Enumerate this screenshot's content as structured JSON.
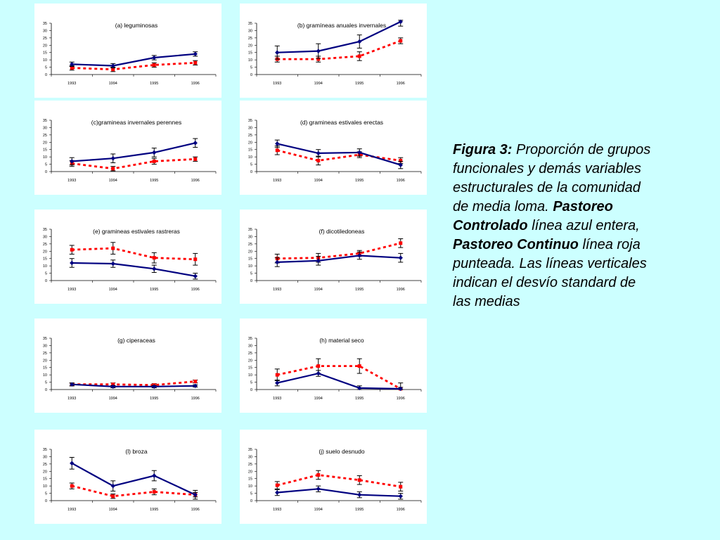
{
  "colors": {
    "controlado": "#000080",
    "continuo": "#ff0000",
    "background": "#ccffff",
    "panel": "#ffffff"
  },
  "caption": {
    "label": "Figura 3:",
    "text1": "Proporción de grupos funcionales y demás variables estructurales de la comunidad de media loma.",
    "controlado_label": "Pastoreo Controlado",
    "text2": "línea azul entera,",
    "continuo_label": "Pastoreo Continuo",
    "text3": "línea roja punteada. Las líneas verticales indican el desvío standard de las medias"
  },
  "chart_data": [
    {
      "type": "line",
      "title": "(a) leguminosas",
      "categories": [
        "1993",
        "1994",
        "1995",
        "1996"
      ],
      "ylim": [
        0,
        35
      ],
      "yticks": [
        0,
        5,
        10,
        15,
        20,
        25,
        30,
        35
      ],
      "series": [
        {
          "style": "solid",
          "values": [
            7,
            6,
            11.5,
            14
          ],
          "err": [
            1.5,
            1.5,
            1.5,
            1.5
          ]
        },
        {
          "style": "dashed",
          "values": [
            4.5,
            3.5,
            6.5,
            8
          ],
          "err": [
            1.5,
            1.5,
            1.5,
            1.5
          ]
        }
      ]
    },
    {
      "type": "line",
      "title": "(b) gramíneas anuales invernales",
      "categories": [
        "1993",
        "1994",
        "1995",
        "1996"
      ],
      "ylim": [
        0,
        35
      ],
      "yticks": [
        0,
        5,
        10,
        15,
        20,
        25,
        30,
        35
      ],
      "series": [
        {
          "style": "solid",
          "values": [
            15,
            16,
            22.5,
            36
          ],
          "err": [
            4.5,
            5,
            4.5,
            3
          ]
        },
        {
          "style": "dashed",
          "values": [
            10.5,
            10.5,
            12.5,
            23
          ],
          "err": [
            2,
            2,
            3,
            2
          ]
        }
      ]
    },
    {
      "type": "line",
      "title": "(c)gramineas invernales perennes",
      "categories": [
        "1993",
        "1994",
        "1995",
        "1996"
      ],
      "ylim": [
        0,
        35
      ],
      "yticks": [
        0,
        5,
        10,
        15,
        20,
        25,
        30,
        35
      ],
      "series": [
        {
          "style": "solid",
          "values": [
            7,
            9,
            13,
            19.5
          ],
          "err": [
            2.5,
            3,
            3,
            3
          ]
        },
        {
          "style": "dashed",
          "values": [
            5.5,
            2,
            7,
            8.5
          ],
          "err": [
            2,
            1.5,
            2,
            1.5
          ]
        }
      ]
    },
    {
      "type": "line",
      "title": "(d) gramineas estivales erectas",
      "categories": [
        "1993",
        "1994",
        "1995",
        "1996"
      ],
      "ylim": [
        0,
        35
      ],
      "yticks": [
        0,
        5,
        10,
        15,
        20,
        25,
        30,
        35
      ],
      "series": [
        {
          "style": "solid",
          "values": [
            19,
            12.5,
            13,
            4.5
          ],
          "err": [
            2.5,
            2.5,
            2.5,
            2.5
          ]
        },
        {
          "style": "dashed",
          "values": [
            14.5,
            7.5,
            11.5,
            7.5
          ],
          "err": [
            3,
            3,
            2,
            2
          ]
        }
      ]
    },
    {
      "type": "line",
      "title": "(e) gramineas estivales rastreras",
      "categories": [
        "1993",
        "1994",
        "1995",
        "1996"
      ],
      "ylim": [
        0,
        35
      ],
      "yticks": [
        0,
        5,
        10,
        15,
        20,
        25,
        30,
        35
      ],
      "series": [
        {
          "style": "solid",
          "values": [
            12,
            11.5,
            8,
            3
          ],
          "err": [
            3,
            2.5,
            2.5,
            2
          ]
        },
        {
          "style": "dashed",
          "values": [
            21,
            22,
            15.5,
            14.5
          ],
          "err": [
            3,
            4,
            3.5,
            4
          ]
        }
      ]
    },
    {
      "type": "line",
      "title": "(f) dicotiledoneas",
      "categories": [
        "1993",
        "1994",
        "1995",
        "1996"
      ],
      "ylim": [
        0,
        35
      ],
      "yticks": [
        0,
        5,
        10,
        15,
        20,
        25,
        30,
        35
      ],
      "series": [
        {
          "style": "solid",
          "values": [
            12.5,
            13.5,
            17,
            15.5
          ],
          "err": [
            3,
            3,
            2.5,
            3
          ]
        },
        {
          "style": "dashed",
          "values": [
            15,
            15.5,
            18.5,
            25.5
          ],
          "err": [
            3,
            3,
            2,
            3
          ]
        }
      ]
    },
    {
      "type": "line",
      "title": "(g) ciperaceas",
      "categories": [
        "1993",
        "1994",
        "1995",
        "1996"
      ],
      "ylim": [
        0,
        35
      ],
      "yticks": [
        0,
        5,
        10,
        15,
        20,
        25,
        30,
        35
      ],
      "series": [
        {
          "style": "solid",
          "values": [
            3.5,
            2,
            2,
            2.5
          ],
          "err": [
            1,
            0.8,
            0.8,
            0.8
          ]
        },
        {
          "style": "dashed",
          "values": [
            3.5,
            3.5,
            3,
            5.5
          ],
          "err": [
            1,
            1,
            1,
            1
          ]
        }
      ]
    },
    {
      "type": "line",
      "title": "(h) material seco",
      "categories": [
        "1993",
        "1994",
        "1995",
        "1996"
      ],
      "ylim": [
        0,
        35
      ],
      "yticks": [
        0,
        5,
        10,
        15,
        20,
        25,
        30,
        35
      ],
      "series": [
        {
          "style": "solid",
          "values": [
            4.5,
            11,
            1,
            0.5
          ],
          "err": [
            2,
            2,
            1.5,
            1
          ]
        },
        {
          "style": "dashed",
          "values": [
            10,
            16,
            16,
            0.5
          ],
          "err": [
            4,
            5,
            5,
            4
          ]
        }
      ]
    },
    {
      "type": "line",
      "title": "(l) broza",
      "categories": [
        "1993",
        "1994",
        "1995",
        "1996"
      ],
      "ylim": [
        0,
        35
      ],
      "yticks": [
        0,
        5,
        10,
        15,
        20,
        25,
        30,
        35
      ],
      "series": [
        {
          "style": "solid",
          "values": [
            25.5,
            10,
            17,
            4
          ],
          "err": [
            4,
            3.5,
            3.5,
            3
          ]
        },
        {
          "style": "dashed",
          "values": [
            10,
            3,
            6,
            4
          ],
          "err": [
            2,
            1.5,
            2,
            1.5
          ]
        }
      ]
    },
    {
      "type": "line",
      "title": "(j) suelo desnudo",
      "categories": [
        "1993",
        "1994",
        "1995",
        "1996"
      ],
      "ylim": [
        0,
        35
      ],
      "yticks": [
        0,
        5,
        10,
        15,
        20,
        25,
        30,
        35
      ],
      "series": [
        {
          "style": "solid",
          "values": [
            5.5,
            8,
            4,
            3
          ],
          "err": [
            2,
            2,
            2,
            2
          ]
        },
        {
          "style": "dashed",
          "values": [
            10.5,
            17.5,
            14,
            9.5
          ],
          "err": [
            2.5,
            3,
            3,
            3
          ]
        }
      ]
    }
  ]
}
